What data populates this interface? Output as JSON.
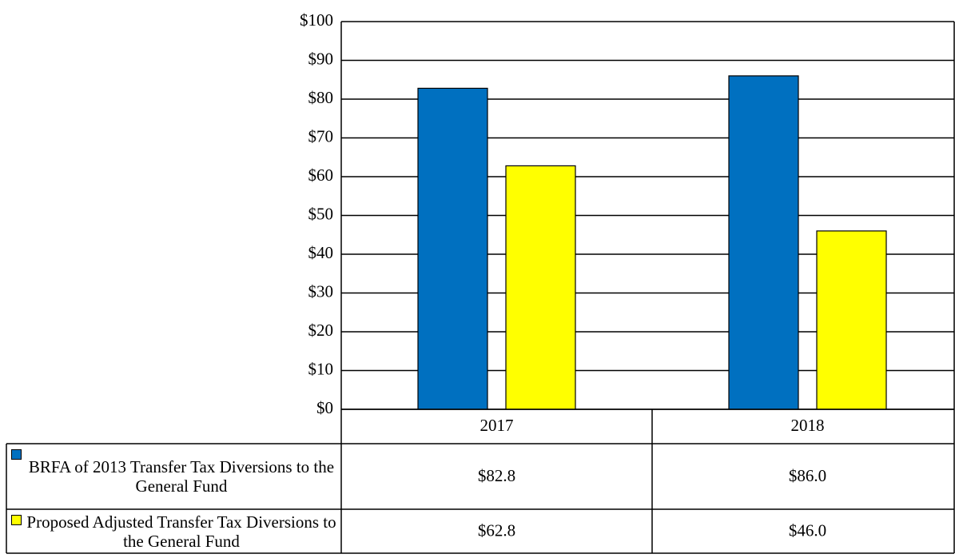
{
  "chart_data": {
    "type": "bar",
    "categories": [
      "2017",
      "2018"
    ],
    "series": [
      {
        "name": "BRFA of 2013 Transfer Tax Diversions to the General Fund",
        "color": "#0070c0",
        "values": [
          82.8,
          86.0
        ],
        "value_labels": [
          "$82.8",
          "$86.0"
        ]
      },
      {
        "name": "Proposed Adjusted Transfer Tax Diversions to the General Fund",
        "color": "#ffff00",
        "values": [
          62.8,
          46.0
        ],
        "value_labels": [
          "$62.8",
          "$46.0"
        ]
      }
    ],
    "ylim": [
      0,
      100
    ],
    "yticks": [
      {
        "value": 0,
        "label": "$0"
      },
      {
        "value": 10,
        "label": "$10"
      },
      {
        "value": 20,
        "label": "$20"
      },
      {
        "value": 30,
        "label": "$30"
      },
      {
        "value": 40,
        "label": "$40"
      },
      {
        "value": 50,
        "label": "$50"
      },
      {
        "value": 60,
        "label": "$60"
      },
      {
        "value": 70,
        "label": "$70"
      },
      {
        "value": 80,
        "label": "$80"
      },
      {
        "value": 90,
        "label": "$90"
      },
      {
        "value": 100,
        "label": "$100"
      }
    ],
    "grid": true
  }
}
